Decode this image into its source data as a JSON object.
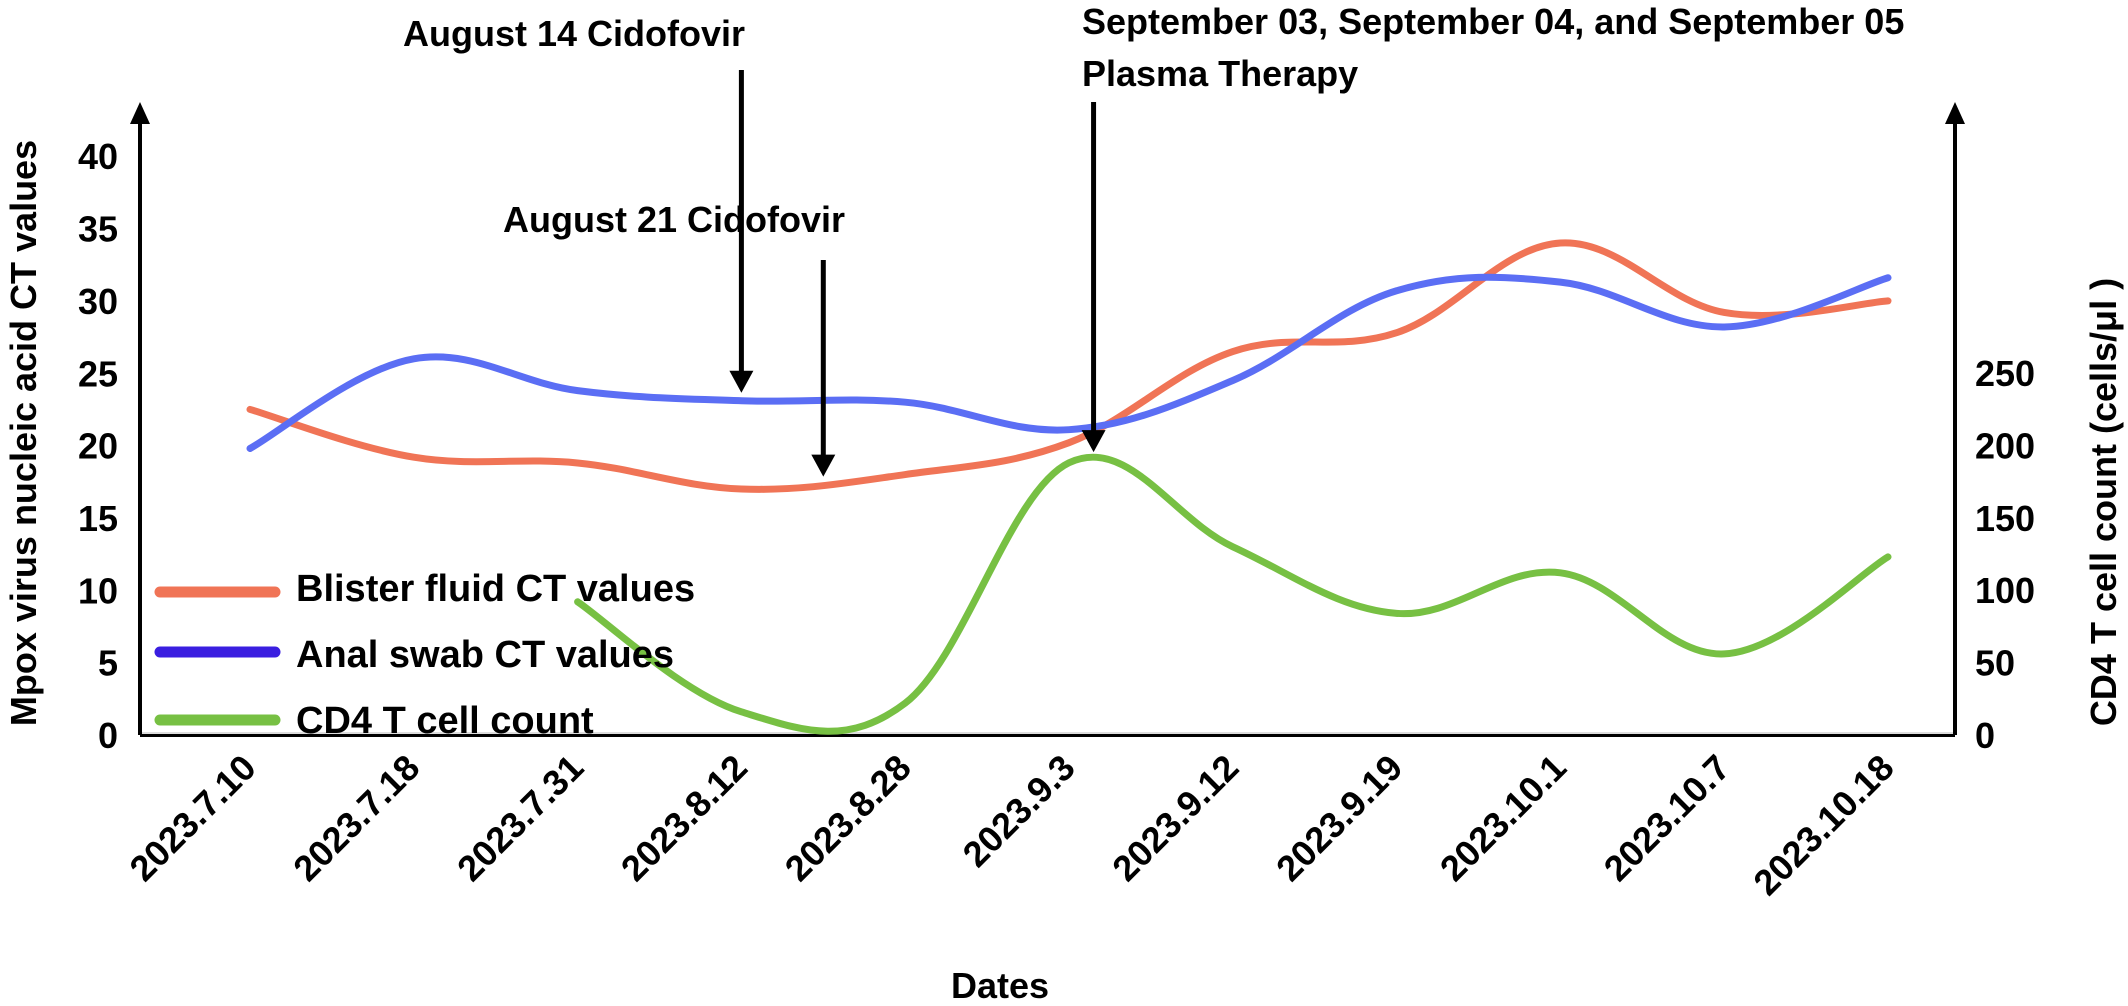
{
  "chart_data": {
    "type": "line",
    "xlabel": "Dates",
    "ylabel_left": "Mpox virus nucleic acid CT values",
    "ylabel_right": "CD4 T cell count (cells/μl )",
    "categories": [
      "2023.7.10",
      "2023.7.18",
      "2023.7.31",
      "2023.8.12",
      "2023.8.28",
      "2023.9.3",
      "2023.9.12",
      "2023.9.19",
      "2023.10.1",
      "2023.10.7",
      "2023.10.18"
    ],
    "y_left": {
      "ticks": [
        0,
        5,
        10,
        15,
        20,
        25,
        30,
        35,
        40
      ]
    },
    "y_right": {
      "ticks": [
        0,
        50,
        100,
        150,
        200,
        250
      ]
    },
    "series": [
      {
        "name": "Blister fluid CT values",
        "axis": "left",
        "color": "#f07456",
        "values": [
          22.5,
          19.2,
          18.8,
          17.0,
          18.0,
          20.2,
          26.5,
          27.8,
          34.0,
          29.2,
          30.0
        ]
      },
      {
        "name": "Anal swab CT values",
        "axis": "left",
        "color": "#5b6ef4",
        "legend_color": "#3a1ee0",
        "values": [
          19.8,
          26.0,
          23.8,
          23.1,
          23.0,
          21.1,
          24.5,
          30.7,
          31.3,
          28.2,
          31.6
        ]
      },
      {
        "name": "CD4 T cell count",
        "axis": "right",
        "color": "#77c043",
        "values": [
          null,
          null,
          92,
          16,
          22,
          188,
          130,
          84,
          112,
          56,
          123
        ]
      }
    ],
    "annotations": [
      {
        "text": "August 14 Cidofovir",
        "target_value": 23.1,
        "target_x": 3.0
      },
      {
        "text": "August 21 Cidofovir",
        "target_value": 17.3,
        "target_x": 3.5
      },
      {
        "text_lines": [
          "September 03, September 04, and September 05",
          "Plasma Therapy"
        ],
        "target_value": 19.0,
        "target_x": 5.15
      }
    ],
    "legend_position": "bottom-left"
  }
}
